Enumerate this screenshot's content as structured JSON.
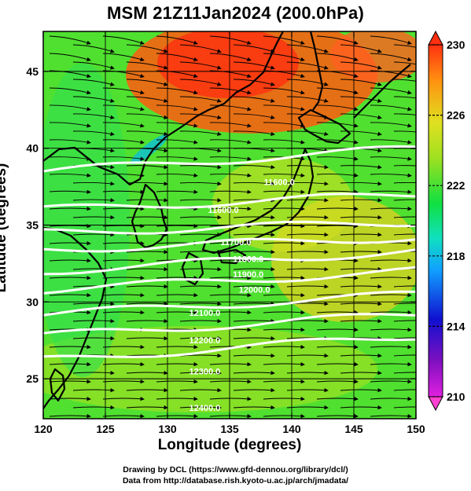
{
  "title": "MSM 21Z11Jan2024 (200.0hPa)",
  "x_axis": {
    "label": "Longitude (degrees)",
    "ticks": [
      "120",
      "125",
      "130",
      "135",
      "140",
      "145",
      "150"
    ]
  },
  "y_axis": {
    "label": "Latitude  (degrees)",
    "ticks": [
      "25",
      "30",
      "35",
      "40",
      "45"
    ]
  },
  "colorbar": {
    "ticks": [
      "210",
      "214",
      "218",
      "222",
      "226",
      "230"
    ],
    "colors": [
      "#e020e0",
      "#8010c0",
      "#1010d0",
      "#10a0ff",
      "#10e0c0",
      "#10e040",
      "#a0e020",
      "#e0e020",
      "#ff9010",
      "#ff3010"
    ]
  },
  "contour_labels": [
    "11600.0",
    "11600.0",
    "11700.0",
    "11800.0",
    "11900.0",
    "12000.0",
    "12100.0",
    "12200.0",
    "12300.0",
    "12400.0"
  ],
  "credits": {
    "line1": "Drawing by DCL (https://www.gfd-dennou.org/library/dcl/)",
    "line2": "Data from http://database.rish.kyoto-u.ac.jp/arch/jmadata/"
  },
  "chart_data": {
    "type": "heatmap",
    "title": "MSM 21Z11Jan2024 (200.0hPa)",
    "xlabel": "Longitude (degrees)",
    "ylabel": "Latitude  (degrees)",
    "xlim": [
      120,
      150
    ],
    "ylim": [
      22.4,
      47.6
    ],
    "colorbar_range": [
      210,
      230
    ],
    "field": "temperature-shaded",
    "contours": [
      {
        "value": 11600.0,
        "lat_at_120": 38.5,
        "lat_at_150": 40.0
      },
      {
        "value": 11700.0,
        "lat_at_120": 36.0,
        "lat_at_150": 37.0
      },
      {
        "value": 11800.0,
        "lat_at_120": 34.5,
        "lat_at_150": 35.2
      },
      {
        "value": 11900.0,
        "lat_at_120": 33.4,
        "lat_at_150": 34.2
      },
      {
        "value": 12000.0,
        "lat_at_120": 32.0,
        "lat_at_150": 33.3
      },
      {
        "value": 12100.0,
        "lat_at_120": 30.8,
        "lat_at_150": 32.0
      },
      {
        "value": 12200.0,
        "lat_at_120": 29.2,
        "lat_at_150": 30.5
      },
      {
        "value": 12300.0,
        "lat_at_120": 27.8,
        "lat_at_150": 29.2
      },
      {
        "value": 12400.0,
        "lat_at_120": 26.2,
        "lat_at_150": 27.8
      }
    ],
    "wind": "westerly"
  }
}
